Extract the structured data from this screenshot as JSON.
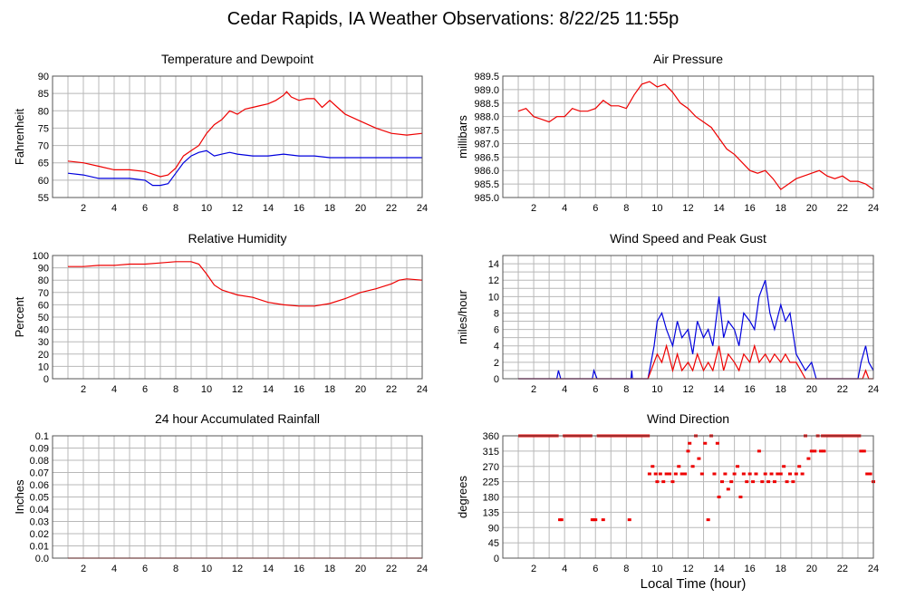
{
  "page": {
    "title": "Cedar Rapids, IA Weather Observations: 8/22/25 11:55p",
    "x_axis_label": "Local Time (hour)"
  },
  "colors": {
    "red": "#ee0000",
    "blue": "#0000dd",
    "grid": "#b8b8b8",
    "frame": "#555555"
  },
  "chart_data": [
    {
      "id": "temp",
      "type": "line",
      "title": "Temperature and Dewpoint",
      "ylabel": "Fahrenheit",
      "xlim": [
        0,
        24
      ],
      "ylim": [
        55,
        90
      ],
      "xticks": [
        2,
        4,
        6,
        8,
        10,
        12,
        14,
        16,
        18,
        20,
        22,
        24
      ],
      "yticks": [
        55,
        60,
        65,
        70,
        75,
        80,
        85,
        90
      ],
      "ytick_labels": [
        "55",
        "60",
        "65",
        "70",
        "75",
        "80",
        "85",
        "90"
      ],
      "grid": true,
      "series": [
        {
          "color": "#ee0000",
          "x": [
            1,
            2,
            3,
            4,
            5,
            6,
            7,
            7.5,
            8,
            8.5,
            9,
            9.5,
            10,
            10.5,
            11,
            11.5,
            12,
            12.5,
            13,
            13.5,
            14,
            14.5,
            15,
            15.2,
            15.5,
            16,
            16.5,
            17,
            17.5,
            18,
            18.5,
            19,
            19.5,
            20,
            21,
            22,
            23,
            24
          ],
          "y": [
            65.5,
            65,
            64,
            63,
            63,
            62.5,
            61,
            61.5,
            63.5,
            67,
            68.5,
            70,
            73.5,
            76,
            77.5,
            80,
            79,
            80.5,
            81,
            81.5,
            82,
            83,
            84.5,
            85.5,
            84,
            83,
            83.5,
            83.5,
            81,
            83,
            81,
            79,
            78,
            77,
            75,
            73.5,
            73,
            73.5
          ]
        },
        {
          "color": "#0000dd",
          "x": [
            1,
            2,
            3,
            4,
            5,
            6,
            6.5,
            7,
            7.5,
            8,
            8.5,
            9,
            9.5,
            10,
            10.5,
            11,
            11.5,
            12,
            13,
            14,
            15,
            16,
            17,
            18,
            19,
            20,
            21,
            22,
            23,
            24
          ],
          "y": [
            62,
            61.5,
            60.5,
            60.5,
            60.5,
            60,
            58.5,
            58.5,
            59,
            62,
            65,
            67,
            68,
            68.5,
            67,
            67.5,
            68,
            67.5,
            67,
            67,
            67.5,
            67,
            67,
            66.5,
            66.5,
            66.5,
            66.5,
            66.5,
            66.5,
            66.5
          ]
        }
      ]
    },
    {
      "id": "pressure",
      "type": "line",
      "title": "Air Pressure",
      "ylabel": "millibars",
      "xlim": [
        0,
        24
      ],
      "ylim": [
        985.0,
        989.5
      ],
      "xticks": [
        2,
        4,
        6,
        8,
        10,
        12,
        14,
        16,
        18,
        20,
        22,
        24
      ],
      "yticks": [
        985.0,
        985.5,
        986.0,
        986.5,
        987.0,
        987.5,
        988.0,
        988.5,
        989.0,
        989.5
      ],
      "ytick_labels": [
        "985.0",
        "985.5",
        "986.0",
        "986.5",
        "987.0",
        "987.5",
        "988.0",
        "988.5",
        "989.0",
        "989.5"
      ],
      "grid": true,
      "series": [
        {
          "color": "#ee0000",
          "x": [
            1,
            1.5,
            2,
            2.5,
            3,
            3.5,
            4,
            4.5,
            5,
            5.5,
            6,
            6.5,
            7,
            7.5,
            8,
            8.5,
            9,
            9.5,
            10,
            10.5,
            11,
            11.5,
            12,
            12.5,
            13,
            13.5,
            14,
            14.5,
            15,
            15.5,
            16,
            16.5,
            17,
            17.5,
            18,
            18.5,
            19,
            19.5,
            20,
            20.5,
            21,
            21.5,
            22,
            22.5,
            23,
            23.5,
            24
          ],
          "y": [
            988.2,
            988.3,
            988.0,
            987.9,
            987.8,
            988.0,
            988.0,
            988.3,
            988.2,
            988.2,
            988.3,
            988.6,
            988.4,
            988.4,
            988.3,
            988.8,
            989.2,
            989.3,
            989.1,
            989.2,
            988.9,
            988.5,
            988.3,
            988.0,
            987.8,
            987.6,
            987.2,
            986.8,
            986.6,
            986.3,
            986.0,
            985.9,
            986.0,
            985.7,
            985.3,
            985.5,
            985.7,
            985.8,
            985.9,
            986.0,
            985.8,
            985.7,
            985.8,
            985.6,
            985.6,
            985.5,
            985.3
          ]
        }
      ]
    },
    {
      "id": "humidity",
      "type": "line",
      "title": "Relative Humidity",
      "ylabel": "Percent",
      "xlim": [
        0,
        24
      ],
      "ylim": [
        0,
        100
      ],
      "xticks": [
        2,
        4,
        6,
        8,
        10,
        12,
        14,
        16,
        18,
        20,
        22,
        24
      ],
      "yticks": [
        0,
        10,
        20,
        30,
        40,
        50,
        60,
        70,
        80,
        90,
        100
      ],
      "ytick_labels": [
        "0",
        "10",
        "20",
        "30",
        "40",
        "50",
        "60",
        "70",
        "80",
        "90",
        "100"
      ],
      "grid": true,
      "series": [
        {
          "color": "#ee0000",
          "x": [
            1,
            2,
            3,
            4,
            5,
            6,
            7,
            8,
            9,
            9.5,
            10,
            10.5,
            11,
            11.5,
            12,
            13,
            14,
            15,
            16,
            17,
            18,
            19,
            20,
            21,
            22,
            22.5,
            23,
            24
          ],
          "y": [
            91,
            91,
            92,
            92,
            93,
            93,
            94,
            95,
            95,
            93,
            85,
            76,
            72,
            70,
            68,
            66,
            62,
            60,
            59,
            59,
            61,
            65,
            70,
            73,
            77,
            80,
            81,
            80
          ]
        }
      ]
    },
    {
      "id": "wind",
      "type": "line",
      "title": "Wind Speed and Peak Gust",
      "ylabel": "miles/hour",
      "xlim": [
        0,
        24
      ],
      "ylim": [
        0,
        15
      ],
      "xticks": [
        2,
        4,
        6,
        8,
        10,
        12,
        14,
        16,
        18,
        20,
        22,
        24
      ],
      "yticks": [
        0,
        2,
        4,
        6,
        8,
        10,
        12,
        14
      ],
      "ytick_labels": [
        "0",
        "2",
        "4",
        "6",
        "8",
        "10",
        "12",
        "14"
      ],
      "grid": true,
      "series": [
        {
          "color": "#0000dd",
          "x": [
            1,
            3.5,
            3.6,
            3.75,
            5.8,
            5.9,
            6.1,
            8.3,
            8.35,
            8.4,
            9.4,
            9.6,
            9.8,
            10,
            10.3,
            10.6,
            11,
            11.3,
            11.6,
            12,
            12.3,
            12.6,
            13,
            13.3,
            13.6,
            14,
            14.3,
            14.6,
            15,
            15.3,
            15.6,
            16,
            16.3,
            16.6,
            17,
            17.3,
            17.6,
            18,
            18.3,
            18.6,
            19,
            19.3,
            19.6,
            20,
            20.3,
            20.6,
            23,
            23.2,
            23.5,
            23.7,
            24
          ],
          "y": [
            0,
            0,
            1,
            0,
            0,
            1,
            0,
            0,
            1,
            0,
            0,
            2,
            4,
            7,
            8,
            6,
            4,
            7,
            5,
            6,
            3,
            7,
            5,
            6,
            4,
            10,
            5,
            7,
            6,
            4,
            8,
            7,
            6,
            10,
            12,
            8,
            6,
            9,
            7,
            8,
            3,
            2,
            1,
            2,
            0,
            0,
            0,
            2,
            4,
            2,
            1
          ]
        },
        {
          "color": "#ee0000",
          "x": [
            1,
            9.4,
            9.6,
            10,
            10.3,
            10.6,
            11,
            11.3,
            11.6,
            12,
            12.3,
            12.6,
            13,
            13.3,
            13.6,
            14,
            14.3,
            14.6,
            15,
            15.3,
            15.6,
            16,
            16.3,
            16.6,
            17,
            17.3,
            17.6,
            18,
            18.3,
            18.6,
            19,
            19.3,
            19.6,
            23.3,
            23.5,
            23.7,
            24
          ],
          "y": [
            0,
            0,
            1,
            3,
            2,
            4,
            1,
            3,
            1,
            2,
            1,
            3,
            1,
            2,
            1,
            4,
            1,
            3,
            2,
            1,
            3,
            2,
            4,
            2,
            3,
            2,
            3,
            2,
            3,
            2,
            2,
            1,
            0,
            0,
            1,
            0,
            0
          ]
        }
      ]
    },
    {
      "id": "rain",
      "type": "line",
      "title": "24 hour Accumulated Rainfall",
      "ylabel": "Inches",
      "xlim": [
        0,
        24
      ],
      "ylim": [
        0,
        0.1
      ],
      "xticks": [
        2,
        4,
        6,
        8,
        10,
        12,
        14,
        16,
        18,
        20,
        22,
        24
      ],
      "yticks": [
        0,
        0.01,
        0.02,
        0.03,
        0.04,
        0.05,
        0.06,
        0.07,
        0.08,
        0.09,
        0.1
      ],
      "ytick_labels": [
        "0.0",
        "0.01",
        "0.02",
        "0.03",
        "0.04",
        "0.05",
        "0.06",
        "0.07",
        "0.08",
        "0.09",
        "0.1"
      ],
      "grid": true,
      "series": [
        {
          "color": "#ee0000",
          "x": [
            1,
            24
          ],
          "y": [
            0,
            0
          ]
        }
      ]
    },
    {
      "id": "direction",
      "type": "scatter",
      "title": "Wind Direction",
      "ylabel": "degrees",
      "xlim": [
        0,
        24
      ],
      "ylim": [
        0,
        360
      ],
      "xticks": [
        2,
        4,
        6,
        8,
        10,
        12,
        14,
        16,
        18,
        20,
        22,
        24
      ],
      "yticks": [
        0,
        45,
        90,
        135,
        180,
        225,
        270,
        315,
        360
      ],
      "ytick_labels": [
        "0",
        "45",
        "90",
        "135",
        "180",
        "225",
        "270",
        "315",
        "360"
      ],
      "grid": true,
      "series": [
        {
          "color": "#ee0000",
          "x": [
            1.2,
            1.5,
            1.8,
            2.1,
            2.4,
            2.7,
            3.0,
            3.3,
            3.5,
            3.7,
            3.8,
            4.0,
            4.3,
            4.6,
            4.9,
            5.2,
            5.5,
            5.8,
            5.9,
            6.0,
            6.2,
            6.5,
            6.8,
            7.1,
            7.4,
            7.7,
            8.0,
            8.2,
            8.3,
            8.5,
            8.8,
            9.1,
            9.4,
            9.5,
            9.7,
            9.9,
            10.0,
            10.2,
            10.4,
            10.6,
            10.8,
            11.0,
            11.2,
            11.4,
            11.6,
            11.8,
            12.0,
            12.1,
            12.3,
            12.5,
            12.7,
            12.9,
            13.1,
            13.3,
            13.5,
            13.7,
            13.9,
            14.0,
            14.2,
            14.4,
            14.6,
            14.8,
            15.0,
            15.2,
            15.4,
            15.6,
            15.8,
            16.0,
            16.2,
            16.4,
            16.6,
            16.8,
            17.0,
            17.2,
            17.4,
            17.6,
            17.8,
            18.0,
            18.2,
            18.4,
            18.6,
            18.8,
            19.0,
            19.2,
            19.4,
            19.6,
            19.8,
            20.0,
            20.2,
            20.4,
            20.6,
            20.8,
            21.0,
            21.3,
            21.6,
            21.9,
            22.2,
            22.5,
            22.8,
            23.0,
            23.2,
            23.4,
            23.6,
            23.8,
            24.0
          ],
          "y": [
            360,
            360,
            360,
            360,
            360,
            360,
            360,
            360,
            360,
            113,
            113,
            360,
            360,
            360,
            360,
            360,
            360,
            113,
            113,
            113,
            360,
            113,
            360,
            360,
            360,
            360,
            360,
            113,
            360,
            360,
            360,
            360,
            360,
            248,
            270,
            248,
            225,
            248,
            225,
            248,
            248,
            225,
            248,
            270,
            248,
            248,
            315,
            338,
            270,
            360,
            293,
            248,
            338,
            113,
            360,
            248,
            338,
            180,
            225,
            248,
            203,
            225,
            248,
            270,
            180,
            248,
            225,
            248,
            225,
            248,
            315,
            225,
            248,
            225,
            248,
            225,
            248,
            248,
            270,
            225,
            248,
            225,
            248,
            270,
            248,
            360,
            293,
            315,
            315,
            360,
            315,
            315,
            360,
            360,
            360,
            360,
            360,
            360,
            360,
            360,
            315,
            315,
            248,
            248,
            225
          ]
        }
      ]
    }
  ]
}
